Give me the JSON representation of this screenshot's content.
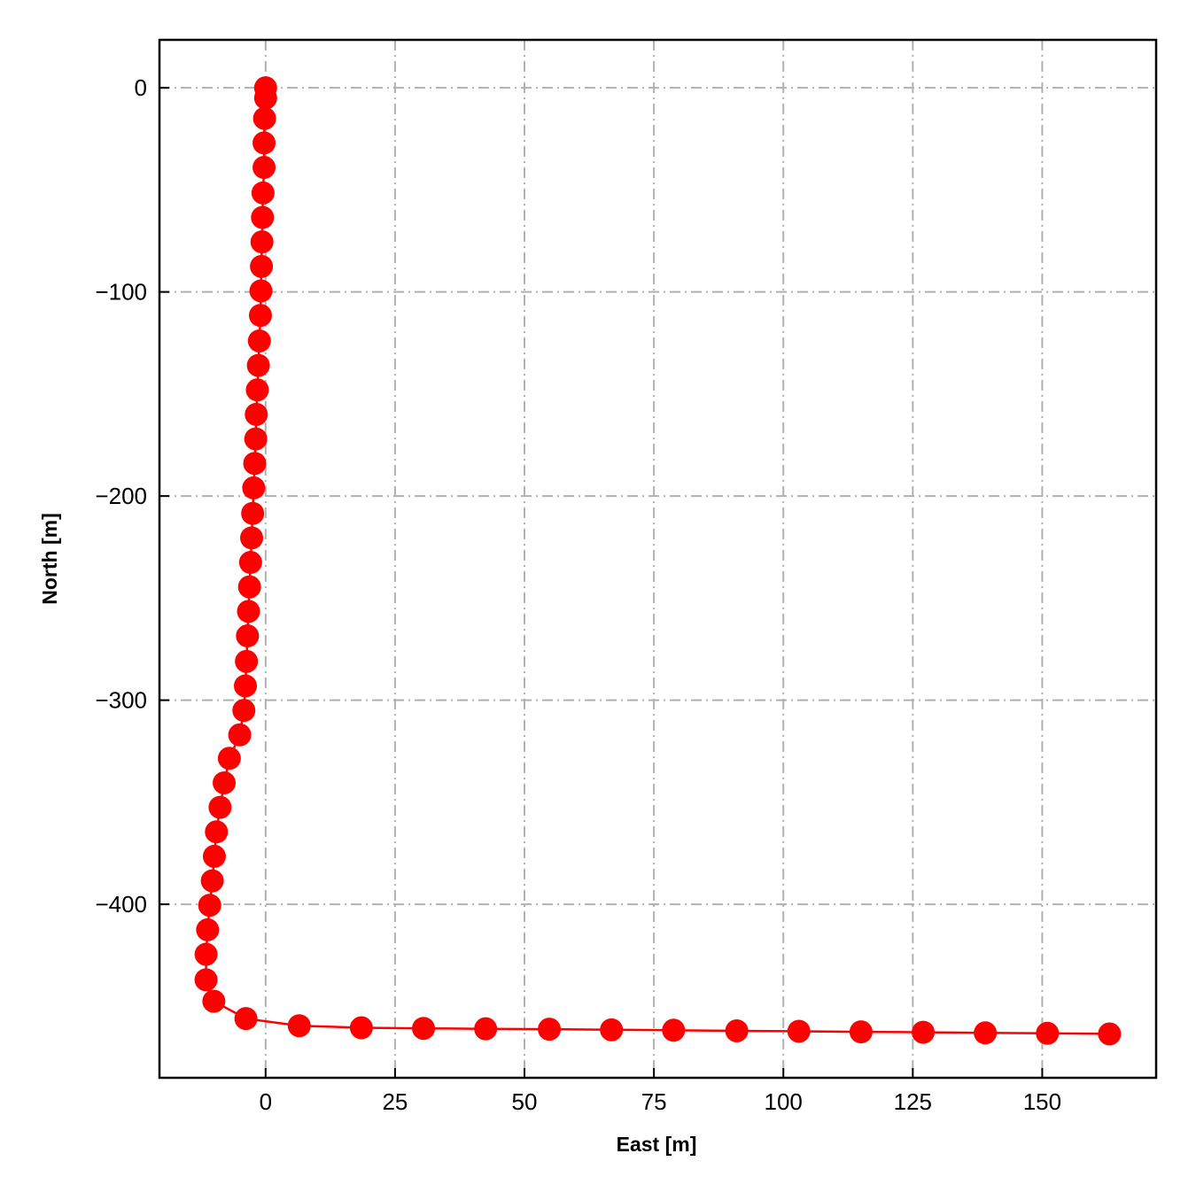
{
  "chart_data": {
    "type": "line",
    "xlabel": "East [m]",
    "ylabel": "North [m]",
    "xlim": [
      -20.5,
      172
    ],
    "ylim": [
      -485,
      23.5
    ],
    "xticks": [
      0,
      25,
      50,
      75,
      100,
      125,
      150
    ],
    "yticks": [
      0,
      -100,
      -200,
      -300,
      -400
    ],
    "xtick_labels": [
      "0",
      "25",
      "50",
      "75",
      "100",
      "125",
      "150"
    ],
    "ytick_labels": [
      "0",
      "−100",
      "−200",
      "−300",
      "−400"
    ],
    "grid": true,
    "grid_style": "dash-dot",
    "markers": true,
    "series": [
      {
        "color": "#ff0000",
        "points": [
          {
            "x": 0.0,
            "y": 0.0
          },
          {
            "x": 0.0,
            "y": -5.0
          },
          {
            "x": -0.2,
            "y": -15.0
          },
          {
            "x": -0.3,
            "y": -27.0
          },
          {
            "x": -0.3,
            "y": -39.0
          },
          {
            "x": -0.5,
            "y": -51.5
          },
          {
            "x": -0.6,
            "y": -63.5
          },
          {
            "x": -0.7,
            "y": -75.5
          },
          {
            "x": -0.8,
            "y": -87.5
          },
          {
            "x": -0.9,
            "y": -99.5
          },
          {
            "x": -1.0,
            "y": -111.5
          },
          {
            "x": -1.2,
            "y": -124.0
          },
          {
            "x": -1.4,
            "y": -136.0
          },
          {
            "x": -1.6,
            "y": -148.0
          },
          {
            "x": -1.8,
            "y": -160.0
          },
          {
            "x": -1.9,
            "y": -172.0
          },
          {
            "x": -2.1,
            "y": -184.0
          },
          {
            "x": -2.3,
            "y": -196.0
          },
          {
            "x": -2.5,
            "y": -208.5
          },
          {
            "x": -2.7,
            "y": -220.5
          },
          {
            "x": -2.9,
            "y": -232.5
          },
          {
            "x": -3.1,
            "y": -244.5
          },
          {
            "x": -3.3,
            "y": -256.5
          },
          {
            "x": -3.5,
            "y": -268.5
          },
          {
            "x": -3.7,
            "y": -281.0
          },
          {
            "x": -3.9,
            "y": -293.0
          },
          {
            "x": -4.2,
            "y": -305.0
          },
          {
            "x": -5.0,
            "y": -317.0
          },
          {
            "x": -7.0,
            "y": -328.5
          },
          {
            "x": -8.0,
            "y": -340.5
          },
          {
            "x": -8.8,
            "y": -352.5
          },
          {
            "x": -9.5,
            "y": -364.5
          },
          {
            "x": -9.9,
            "y": -376.5
          },
          {
            "x": -10.3,
            "y": -388.5
          },
          {
            "x": -10.8,
            "y": -400.5
          },
          {
            "x": -11.2,
            "y": -412.5
          },
          {
            "x": -11.5,
            "y": -424.5
          },
          {
            "x": -11.5,
            "y": -437.0
          },
          {
            "x": -10.0,
            "y": -447.5
          },
          {
            "x": -3.8,
            "y": -456.0
          },
          {
            "x": 6.5,
            "y": -459.5
          },
          {
            "x": 18.5,
            "y": -460.5
          },
          {
            "x": 30.5,
            "y": -460.8
          },
          {
            "x": 42.5,
            "y": -461.0
          },
          {
            "x": 54.8,
            "y": -461.2
          },
          {
            "x": 66.8,
            "y": -461.5
          },
          {
            "x": 78.8,
            "y": -461.7
          },
          {
            "x": 91.0,
            "y": -462.0
          },
          {
            "x": 103.0,
            "y": -462.2
          },
          {
            "x": 115.0,
            "y": -462.5
          },
          {
            "x": 127.0,
            "y": -462.7
          },
          {
            "x": 139.0,
            "y": -463.0
          },
          {
            "x": 151.0,
            "y": -463.2
          },
          {
            "x": 163.0,
            "y": -463.5
          }
        ]
      }
    ]
  }
}
